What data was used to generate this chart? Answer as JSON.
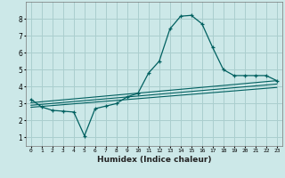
{
  "title": "",
  "xlabel": "Humidex (Indice chaleur)",
  "xlim": [
    -0.5,
    23.5
  ],
  "ylim": [
    0.5,
    9.0
  ],
  "yticks": [
    1,
    2,
    3,
    4,
    5,
    6,
    7,
    8
  ],
  "xticks": [
    0,
    1,
    2,
    3,
    4,
    5,
    6,
    7,
    8,
    9,
    10,
    11,
    12,
    13,
    14,
    15,
    16,
    17,
    18,
    19,
    20,
    21,
    22,
    23
  ],
  "bg_color": "#cce8e8",
  "grid_color": "#aacece",
  "line_color": "#006060",
  "main_curve_x": [
    0,
    1,
    2,
    3,
    4,
    5,
    6,
    7,
    8,
    9,
    10,
    11,
    12,
    13,
    14,
    15,
    16,
    17,
    18,
    19,
    20,
    21,
    22,
    23
  ],
  "main_curve_y": [
    3.25,
    2.8,
    2.6,
    2.55,
    2.5,
    1.1,
    2.7,
    2.85,
    3.0,
    3.4,
    3.6,
    4.8,
    5.5,
    7.4,
    8.15,
    8.2,
    7.7,
    6.3,
    5.0,
    4.65,
    4.65,
    4.65,
    4.65,
    4.35
  ],
  "line2_x": [
    0,
    23
  ],
  "line2_y": [
    3.05,
    4.35
  ],
  "line3_x": [
    0,
    23
  ],
  "line3_y": [
    2.9,
    4.15
  ],
  "line4_x": [
    0,
    23
  ],
  "line4_y": [
    2.78,
    3.95
  ]
}
